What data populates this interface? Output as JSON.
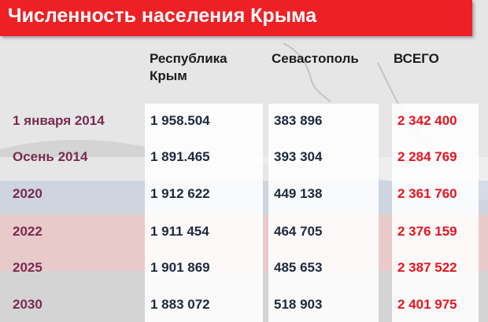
{
  "colors": {
    "title_bg": "#ee2024",
    "title_text": "#ffffff",
    "period_text": "#7a2a50",
    "number_text": "#1d2940",
    "total_text": "#e8141d",
    "flag_white": "#f4f4f4",
    "flag_blue": "#c9d3e8",
    "flag_red": "#f2c6c8"
  },
  "chart_data": {
    "type": "table",
    "title": "Численность населения Крыма",
    "columns": [
      "Республика Крым",
      "Севастополь",
      "ВСЕГО"
    ],
    "rows": [
      {
        "period": "1 января 2014",
        "values": [
          "1 958.504",
          "383 896",
          "2 342 400"
        ]
      },
      {
        "period": "Осень 2014",
        "values": [
          "1 891.465",
          "393 304",
          "2 284 769"
        ]
      },
      {
        "period": "2020",
        "values": [
          "1 912 622",
          "449 138",
          "2 361 760"
        ]
      },
      {
        "period": "2022",
        "values": [
          "1 911 454",
          "464 705",
          "2 376 159"
        ]
      },
      {
        "period": "2025",
        "values": [
          "1 901 869",
          "485 653",
          "2 387 522"
        ]
      },
      {
        "period": "2030",
        "values": [
          "1 883 072",
          "518 903",
          "2 401 975"
        ]
      }
    ]
  }
}
